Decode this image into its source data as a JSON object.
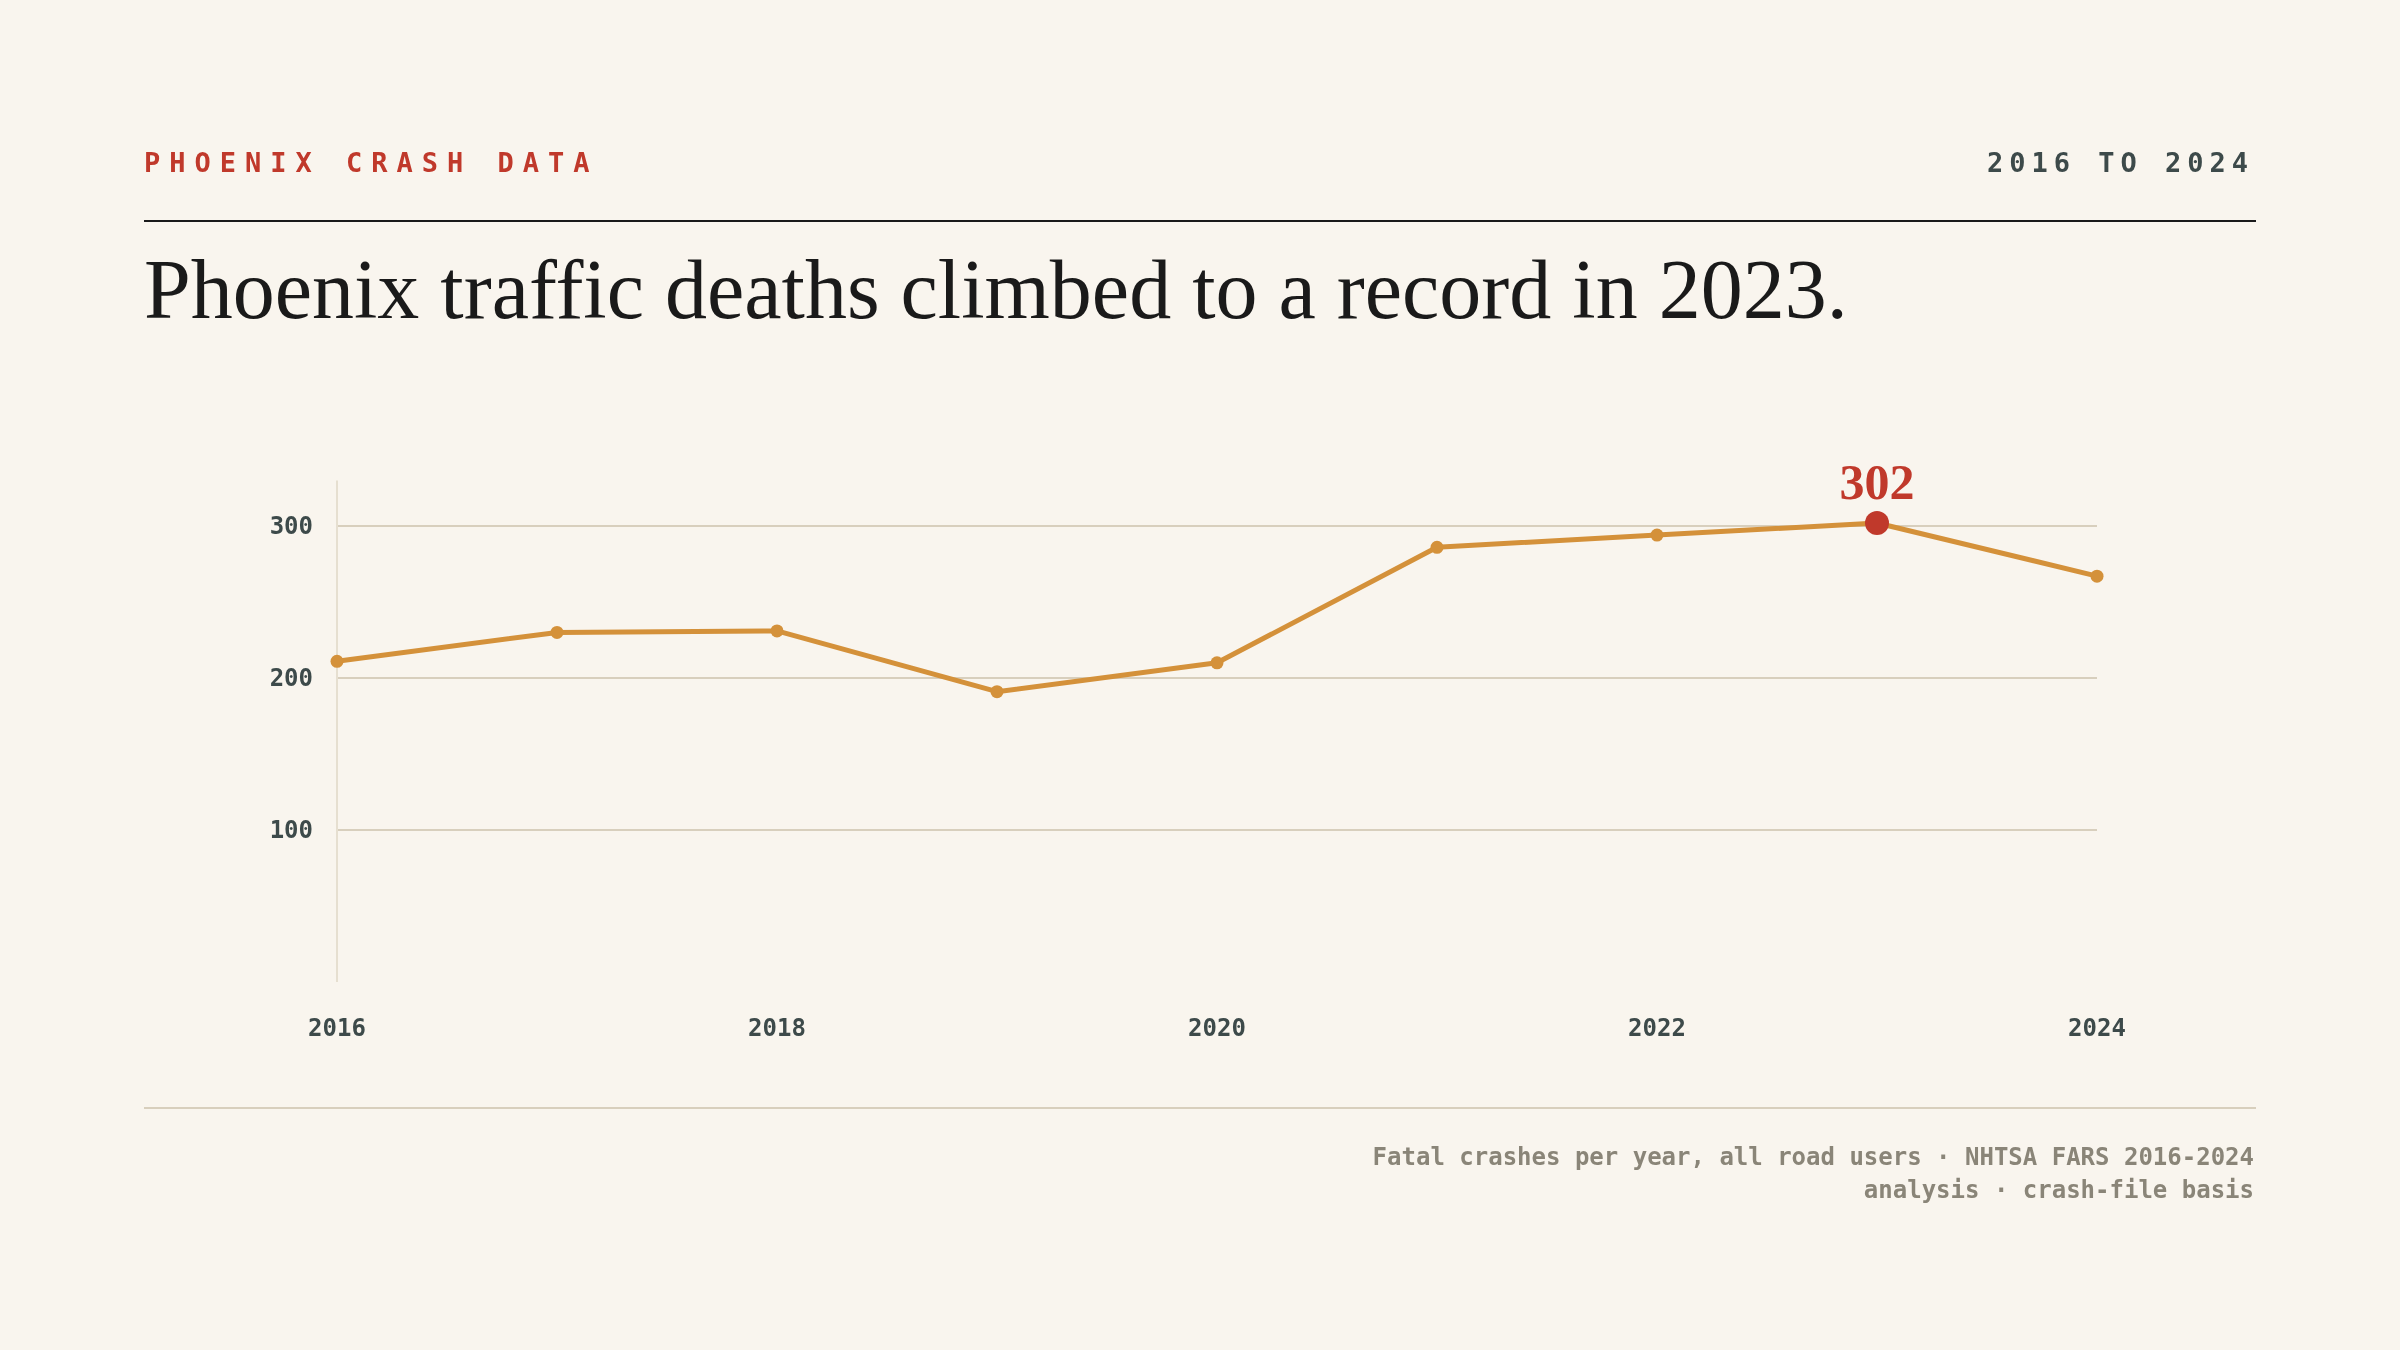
{
  "chart_data": {
    "type": "line",
    "title": "Phoenix traffic deaths climbed to a record in 2023.",
    "subtitle": "2016 TO 2024",
    "annotations": [
      "PHOENIX CRASH DATA",
      "Fatal crashes per year, all road users · NHTSA FARS 2016-2024",
      "analysis · crash-file basis"
    ],
    "x": [
      2016,
      2017,
      2018,
      2019,
      2020,
      2021,
      2022,
      2023,
      2024
    ],
    "series": [
      {
        "color": "#d4913a",
        "values": [
          211,
          230,
          231,
          191,
          210,
          286,
          294,
          302,
          267
        ]
      },
      {
        "type": "scatter",
        "color": "#c0392b",
        "x": [
          2023
        ],
        "values": [
          302
        ],
        "value_labels": [
          "302"
        ]
      }
    ],
    "xlim": [
      2016,
      2024
    ],
    "xticks": [
      2016,
      2018,
      2020,
      2022,
      2024
    ],
    "ylim": [
      0,
      330
    ],
    "yticks": [
      100,
      200,
      300
    ],
    "grid": "y",
    "marker": "circle",
    "line_style": "solid"
  }
}
